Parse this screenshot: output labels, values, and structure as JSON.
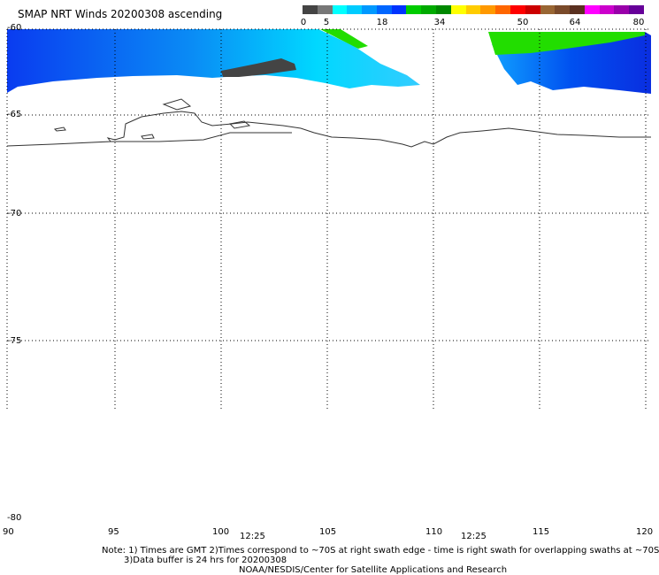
{
  "title": "SMAP NRT Winds 20200308 ascending",
  "colorbar": {
    "segments": [
      "#444444",
      "#777777",
      "#00ffff",
      "#00ccff",
      "#0099ff",
      "#0066ff",
      "#0033ff",
      "#00cc00",
      "#00aa00",
      "#008800",
      "#ffff00",
      "#ffcc00",
      "#ff9900",
      "#ff6600",
      "#ff0000",
      "#cc0000",
      "#996633",
      "#7a4a2a",
      "#5a3020",
      "#ff00ff",
      "#cc00cc",
      "#9900aa",
      "#660099"
    ],
    "labels": [
      "0",
      "5",
      "18",
      "34",
      "50",
      "64",
      "80"
    ]
  },
  "lat_labels": [
    "-60",
    "-65",
    "-70",
    "-75",
    "-80"
  ],
  "lon_labels": [
    "90",
    "95",
    "100",
    "105",
    "110",
    "115",
    "120"
  ],
  "time_labels": [
    "12:25",
    "12:25"
  ],
  "notes": {
    "line1": "Note: 1) Times are GMT 2)Times correspond to ~70S at right swath edge - time is right swath for overlapping swaths at ~70S",
    "line2": "3)Data buffer is 24 hrs for 20200308",
    "line3": "NOAA/NESDIS/Center for Satellite Applications and Research"
  }
}
